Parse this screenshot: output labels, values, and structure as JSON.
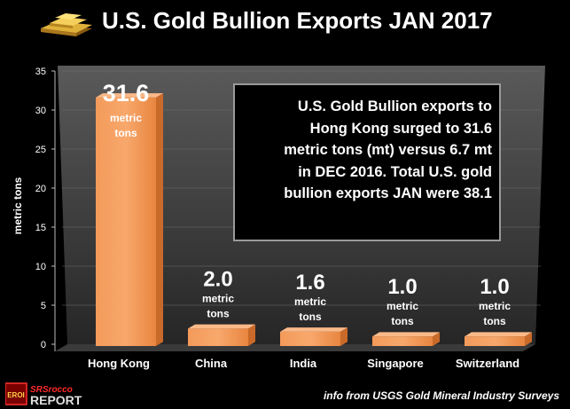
{
  "chart_data": {
    "type": "bar",
    "title": "U.S. Gold Bullion Exports JAN 2017",
    "ylabel": "metric tons",
    "xlabel": "",
    "ylim": [
      0,
      35
    ],
    "yticks": [
      0,
      5,
      10,
      15,
      20,
      25,
      30,
      35
    ],
    "categories": [
      "Hong Kong",
      "China",
      "India",
      "Singapore",
      "Switzerland"
    ],
    "values": [
      31.6,
      2.0,
      1.6,
      1.0,
      1.0
    ],
    "value_labels": [
      "31.6",
      "2.0",
      "1.6",
      "1.0",
      "1.0"
    ],
    "unit_line1": "metric",
    "unit_line2": "tons",
    "bar_color": "#f7964f",
    "annotation": [
      "U.S. Gold Bullion exports to",
      "Hong Kong surged to 31.6",
      "metric tons (mt) versus 6.7 mt",
      "in DEC 2016.  Total U.S. gold",
      "bullion exports JAN were 38.1"
    ]
  },
  "source": "info from USGS Gold Mineral Industry Surveys",
  "logo": {
    "badge": "EROI",
    "line1": "SRSrocco",
    "line2": "REPORT"
  },
  "colors": {
    "background": "#000000",
    "bar": "#f7964f",
    "text": "#ffffff"
  }
}
